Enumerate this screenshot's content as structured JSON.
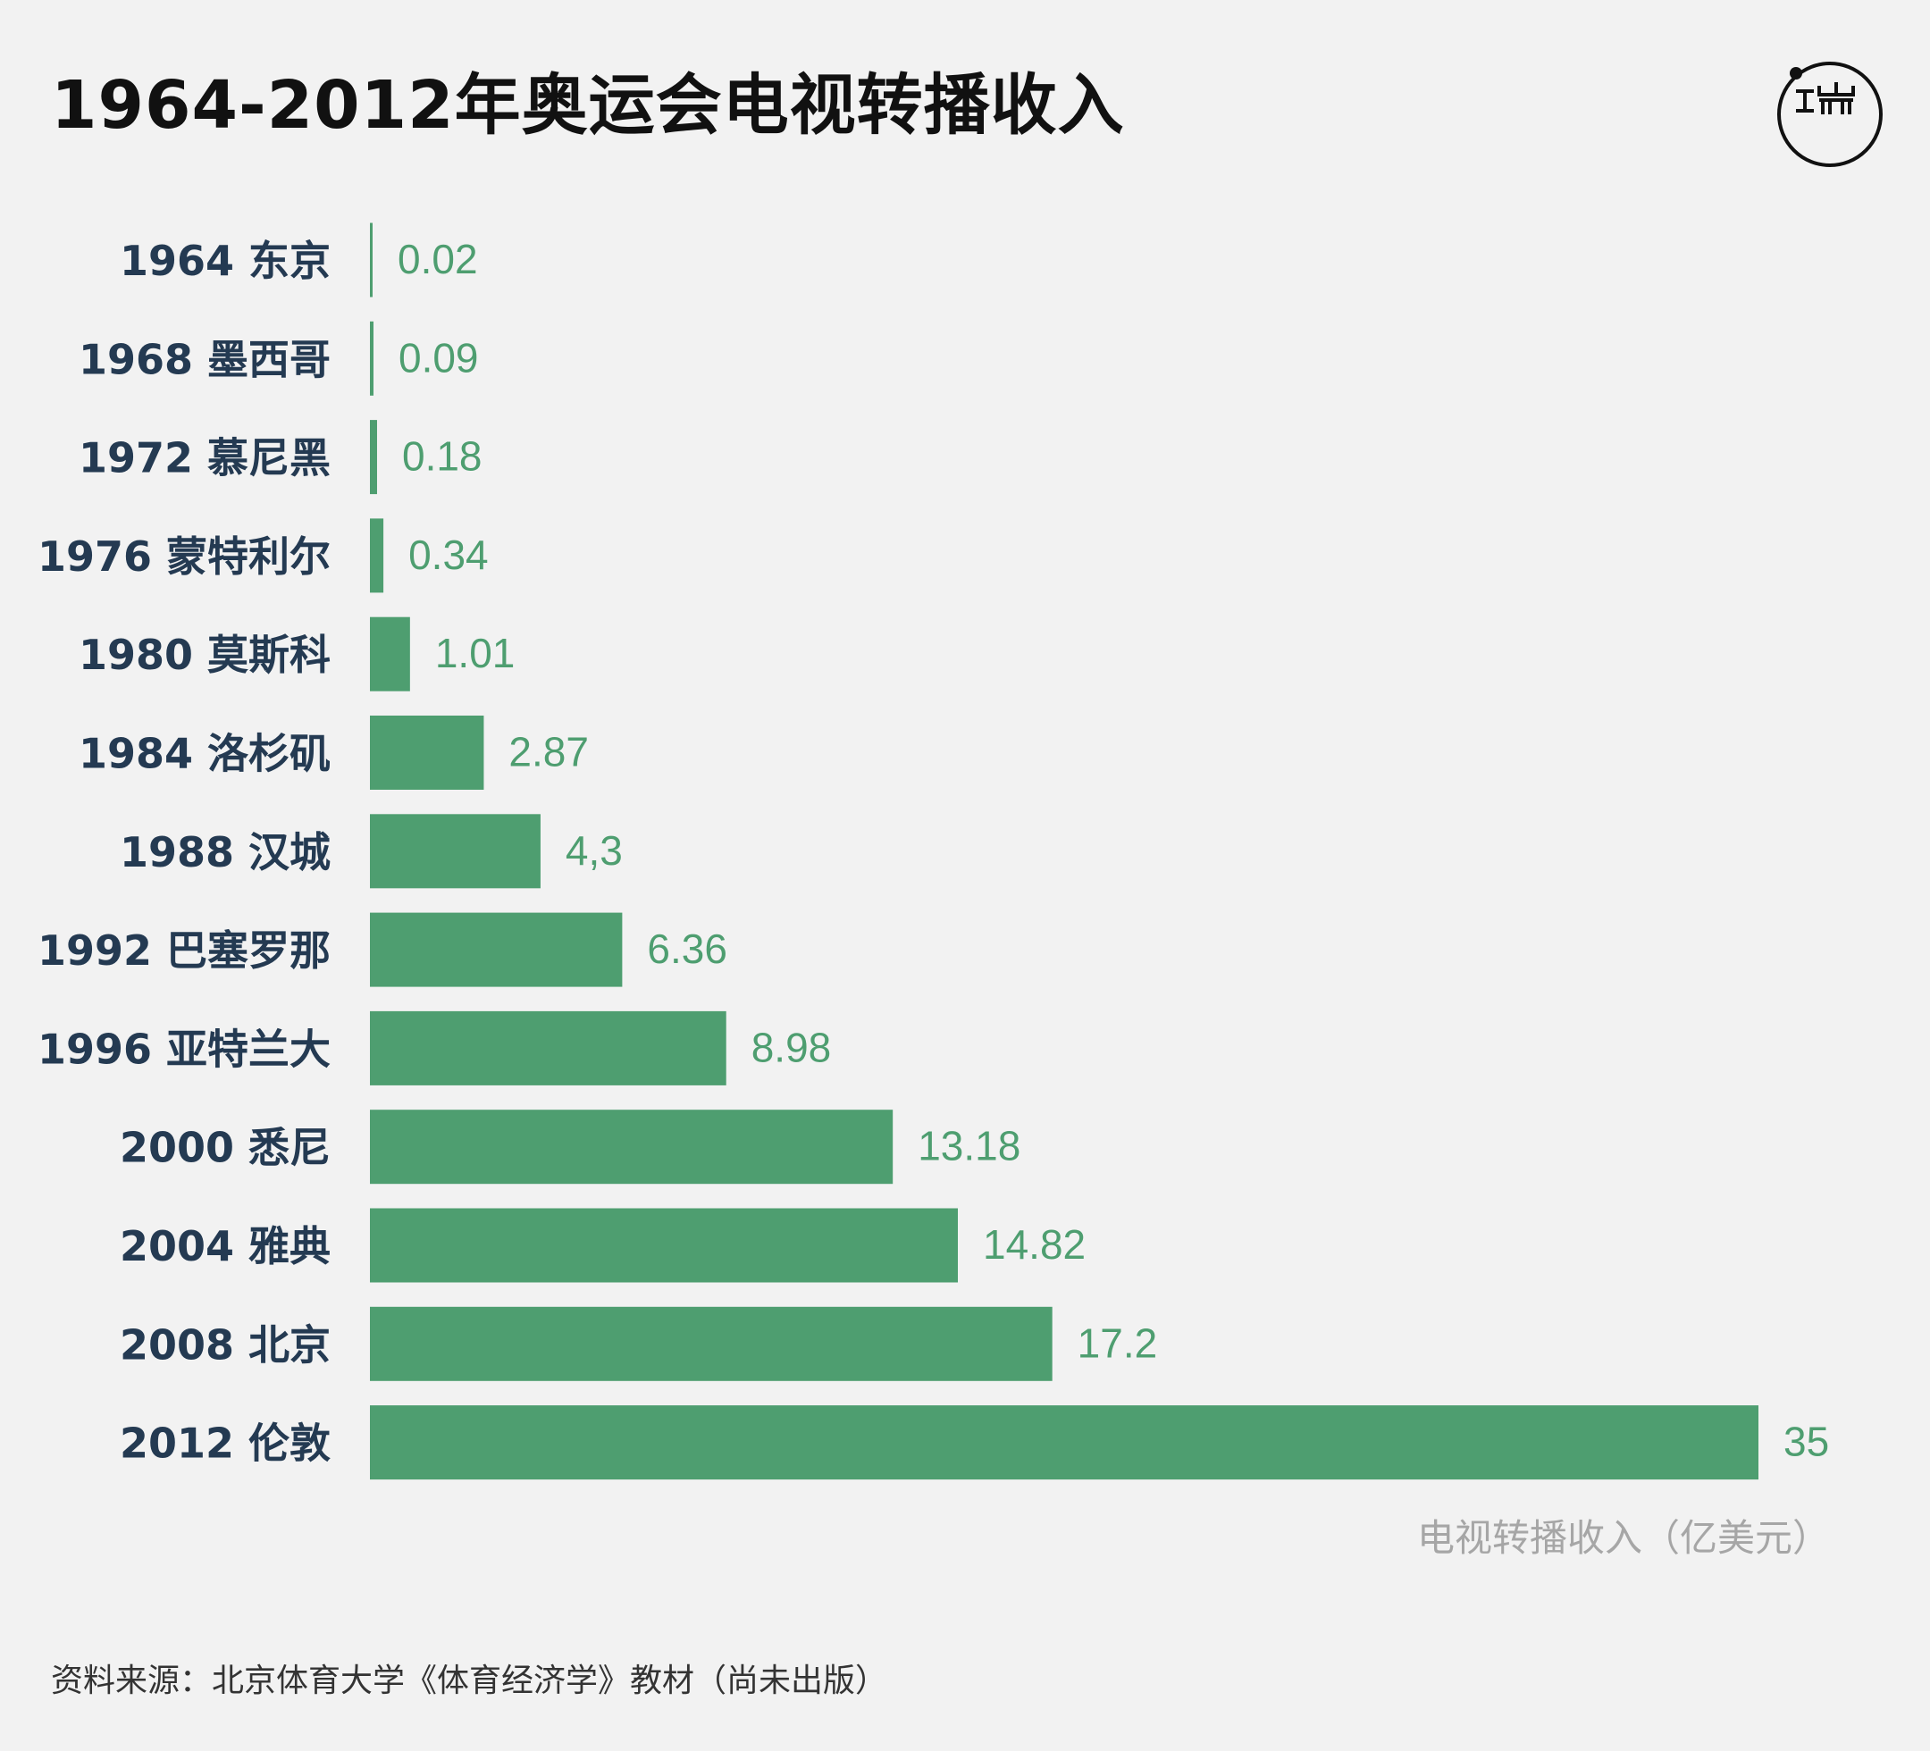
{
  "header": {
    "title": "1964-2012年奥运会电视转播收入",
    "logo_text": "端"
  },
  "colors": {
    "bar": "#4e9e70",
    "category_text": "#243a52",
    "background": "#f2f2f2"
  },
  "chart_data": {
    "type": "bar",
    "orientation": "horizontal",
    "title": "1964-2012年奥运会电视转播收入",
    "xlabel": "电视转播收入（亿美元）",
    "ylabel": "",
    "categories": [
      "1964 东京",
      "1968 墨西哥",
      "1972 慕尼黑",
      "1976 蒙特利尔",
      "1980 莫斯科",
      "1984 洛杉矶",
      "1988 汉城",
      "1992 巴塞罗那",
      "1996 亚特兰大",
      "2000 悉尼",
      "2004 雅典",
      "2008 北京",
      "2012 伦敦"
    ],
    "values": [
      0.02,
      0.09,
      0.18,
      0.34,
      1.01,
      2.87,
      4.3,
      6.36,
      8.98,
      13.18,
      14.82,
      17.2,
      35
    ],
    "value_labels": [
      "0.02",
      "0.09",
      "0.18",
      "0.34",
      "1.01",
      "2.87",
      "4,3",
      "6.36",
      "8.98",
      "13.18",
      "14.82",
      "17.2",
      "35"
    ],
    "xlim": [
      0,
      35
    ],
    "grid": false,
    "legend": "none"
  },
  "footer": {
    "source": "资料来源：北京体育大学《体育经济学》教材（尚未出版）"
  }
}
